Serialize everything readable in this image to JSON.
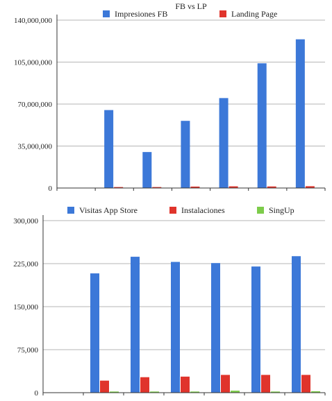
{
  "chart_data": [
    {
      "type": "bar",
      "title": "FB vs LP",
      "categories": [
        "",
        "",
        "",
        "",
        "",
        "",
        ""
      ],
      "series": [
        {
          "name": "Impresiones FB",
          "color": "#3c78d8",
          "values": [
            0,
            65000000,
            30000000,
            56000000,
            75000000,
            104000000,
            124000000
          ]
        },
        {
          "name": "Landing Page",
          "color": "#e0342c",
          "values": [
            0,
            800000,
            800000,
            1200000,
            1400000,
            1300000,
            1500000
          ]
        }
      ],
      "ylim": [
        0,
        140000000
      ],
      "yticks": [
        0,
        35000000,
        70000000,
        105000000,
        140000000
      ],
      "ytick_labels": [
        "0",
        "35,000,000",
        "70,000,000",
        "105,000,000",
        "140,000,000"
      ],
      "grid": true,
      "legend": "top"
    },
    {
      "type": "bar",
      "title": "",
      "categories": [
        "",
        "",
        "",
        "",
        "",
        "",
        ""
      ],
      "series": [
        {
          "name": "Visitas App Store",
          "color": "#3c78d8",
          "values": [
            0,
            208000,
            237000,
            228000,
            226000,
            220000,
            238000
          ]
        },
        {
          "name": "Instalaciones",
          "color": "#e0342c",
          "values": [
            0,
            21000,
            27000,
            28000,
            31000,
            31000,
            31000
          ]
        },
        {
          "name": "SingUp",
          "color": "#7dcc4a",
          "values": [
            0,
            2000,
            2000,
            2000,
            3500,
            2000,
            2500
          ]
        }
      ],
      "ylim": [
        0,
        300000
      ],
      "yticks": [
        0,
        75000,
        150000,
        225000,
        300000
      ],
      "ytick_labels": [
        "0",
        "75,000",
        "150,000",
        "225,000",
        "300,000"
      ],
      "grid": true,
      "legend": "top"
    }
  ]
}
